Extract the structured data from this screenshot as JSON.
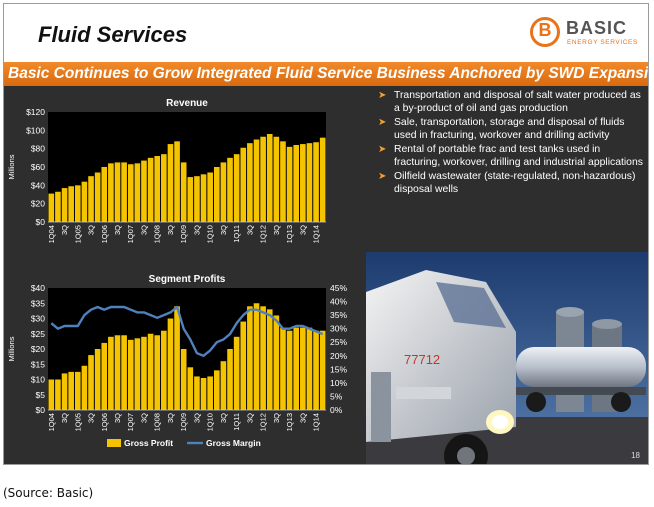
{
  "slide": {
    "title": "Fluid Services",
    "logo": {
      "name": "BASIC",
      "sub": "ENERGY SERVICES",
      "letter": "B"
    },
    "banner": "Basic Continues to Grow Integrated Fluid Service Business Anchored by SWD Expansion",
    "page_number": "18"
  },
  "bullets": [
    "Transportation and disposal of salt water produced as a by-product of oil and gas production",
    "Sale, transportation, storage and disposal of fluids used in fracturing, workover and drilling activity",
    "Rental of portable frac and test tanks used in fracturing, workover, drilling and industrial applications",
    "Oilfield wastewater (state-regulated, non-hazardous) disposal wells"
  ],
  "photo": {
    "truck_number": "77712"
  },
  "caption": "(Source: Basic)",
  "colors": {
    "accent": "#e8731a",
    "bar": "#f5c400",
    "line": "#4f81bd",
    "background": "#2e2e2e"
  },
  "chart_data": [
    {
      "type": "bar",
      "title": "Revenue",
      "ylabel": "Millions",
      "ylim": [
        0,
        120
      ],
      "yticks": [
        "$0",
        "$20",
        "$40",
        "$60",
        "$80",
        "$100",
        "$120"
      ],
      "xtick_labels": [
        "1Q04",
        "3Q",
        "1Q05",
        "3Q",
        "1Q06",
        "3Q",
        "1Q07",
        "3Q",
        "1Q08",
        "3Q",
        "1Q09",
        "3Q",
        "1Q10",
        "3Q",
        "1Q11",
        "3Q",
        "1Q12",
        "3Q",
        "1Q13",
        "3Q",
        "1Q14"
      ],
      "grid": false,
      "values": [
        31,
        33,
        37,
        39,
        40,
        44,
        50,
        54,
        60,
        64,
        65,
        65,
        63,
        64,
        67,
        70,
        72,
        74,
        85,
        88,
        65,
        49,
        50,
        52,
        54,
        60,
        65,
        70,
        74,
        81,
        86,
        90,
        93,
        96,
        93,
        88,
        82,
        84,
        85,
        86,
        87,
        92
      ]
    },
    {
      "type": "bar",
      "title": "Segment Profits",
      "ylabel": "Millions",
      "ylim": [
        0,
        40
      ],
      "y2lim": [
        0,
        45
      ],
      "yticks": [
        "$0",
        "$5",
        "$10",
        "$15",
        "$20",
        "$25",
        "$30",
        "$35",
        "$40"
      ],
      "y2ticks": [
        "0%",
        "5%",
        "10%",
        "15%",
        "20%",
        "25%",
        "30%",
        "35%",
        "40%",
        "45%"
      ],
      "xtick_labels": [
        "1Q04",
        "3Q",
        "1Q05",
        "3Q",
        "1Q06",
        "3Q",
        "1Q07",
        "3Q",
        "1Q08",
        "3Q",
        "1Q09",
        "3Q",
        "1Q10",
        "3Q",
        "1Q11",
        "3Q",
        "1Q12",
        "3Q",
        "1Q13",
        "3Q",
        "1Q14"
      ],
      "legend_position": "bottom",
      "series": [
        {
          "name": "Gross Profit",
          "kind": "bar",
          "axis": "left",
          "values": [
            10,
            10,
            12,
            12.5,
            12.5,
            14.5,
            18,
            20,
            22,
            24,
            24.5,
            24.5,
            23,
            23.5,
            24,
            25,
            24.5,
            26,
            30,
            34,
            20,
            14,
            11,
            10.5,
            11,
            13,
            16,
            20,
            24,
            29,
            34,
            35,
            34,
            33,
            31,
            27,
            26,
            27,
            27,
            27,
            26,
            26
          ]
        },
        {
          "name": "Gross Margin",
          "kind": "line",
          "axis": "right",
          "values": [
            32,
            30,
            31,
            31,
            31,
            35,
            37,
            38,
            37,
            38,
            38,
            38,
            37,
            36,
            36,
            35,
            34,
            35,
            36,
            38,
            30,
            26,
            21,
            20,
            22,
            25,
            26,
            28,
            32,
            35,
            37,
            37,
            36,
            35,
            33,
            30,
            30,
            31,
            31,
            30,
            29,
            28
          ]
        }
      ]
    }
  ]
}
